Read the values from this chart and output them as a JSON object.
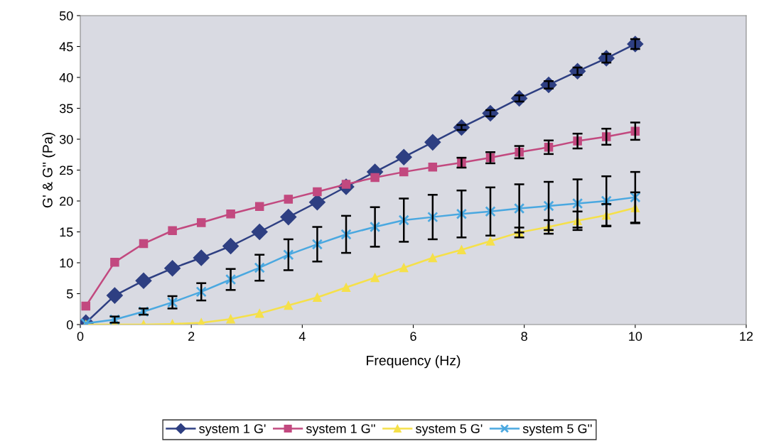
{
  "chart_data": {
    "type": "line",
    "xlabel": "Frequency (Hz)",
    "ylabel": "G' & G'' (Pa)",
    "x": [
      0.1,
      0.62,
      1.14,
      1.66,
      2.18,
      2.71,
      3.23,
      3.75,
      4.27,
      4.79,
      5.31,
      5.83,
      6.35,
      6.87,
      7.39,
      7.91,
      8.44,
      8.96,
      9.48,
      10.0
    ],
    "series": [
      {
        "name": "system 1 G'",
        "color": "#2e3f82",
        "marker": "diamond",
        "values": [
          0.3,
          4.7,
          7.1,
          9.1,
          10.8,
          12.7,
          15.0,
          17.4,
          19.8,
          22.3,
          24.7,
          27.1,
          29.5,
          31.9,
          34.2,
          36.6,
          38.8,
          41.0,
          43.1,
          45.4
        ],
        "errors": [
          null,
          null,
          null,
          null,
          null,
          null,
          null,
          null,
          null,
          null,
          null,
          null,
          null,
          0.4,
          0.5,
          0.5,
          0.6,
          0.6,
          0.7,
          0.8
        ]
      },
      {
        "name": "system 1 G''",
        "color": "#c2497f",
        "marker": "square",
        "values": [
          3.0,
          10.1,
          13.1,
          15.2,
          16.5,
          17.9,
          19.1,
          20.3,
          21.5,
          22.7,
          23.8,
          24.7,
          25.5,
          26.2,
          27.0,
          27.9,
          28.7,
          29.7,
          30.4,
          31.3
        ],
        "errors": [
          null,
          null,
          null,
          null,
          null,
          null,
          null,
          null,
          null,
          null,
          null,
          null,
          null,
          0.8,
          0.9,
          1.0,
          1.1,
          1.2,
          1.3,
          1.4
        ]
      },
      {
        "name": "system 5 G'",
        "color": "#f5e04a",
        "marker": "triangle",
        "values": [
          0.0,
          0.0,
          0.0,
          0.1,
          0.3,
          0.9,
          1.8,
          3.1,
          4.4,
          6.0,
          7.6,
          9.2,
          10.8,
          12.1,
          13.5,
          14.9,
          15.8,
          16.8,
          17.7,
          18.9
        ],
        "errors": [
          null,
          null,
          null,
          null,
          null,
          null,
          null,
          null,
          null,
          null,
          null,
          null,
          null,
          null,
          null,
          0.8,
          1.1,
          1.5,
          1.8,
          2.5
        ]
      },
      {
        "name": "system 5 G''",
        "color": "#4aa8e0",
        "marker": "cross",
        "values": [
          0.2,
          0.8,
          2.1,
          3.6,
          5.3,
          7.3,
          9.2,
          11.3,
          13.0,
          14.6,
          15.8,
          16.9,
          17.4,
          17.9,
          18.3,
          18.8,
          19.2,
          19.6,
          20.0,
          20.6
        ],
        "errors": [
          null,
          0.5,
          0.5,
          1.0,
          1.4,
          1.7,
          2.1,
          2.5,
          2.8,
          3.0,
          3.2,
          3.5,
          3.6,
          3.8,
          3.9,
          3.9,
          3.9,
          3.9,
          4.0,
          4.1
        ]
      }
    ],
    "xlim": [
      0,
      12
    ],
    "xticks": [
      0,
      2,
      4,
      6,
      8,
      10,
      12
    ],
    "ylim": [
      0,
      50
    ],
    "yticks": [
      0,
      5,
      10,
      15,
      20,
      25,
      30,
      35,
      40,
      45,
      50
    ],
    "grid": false,
    "legend": "bottom"
  }
}
